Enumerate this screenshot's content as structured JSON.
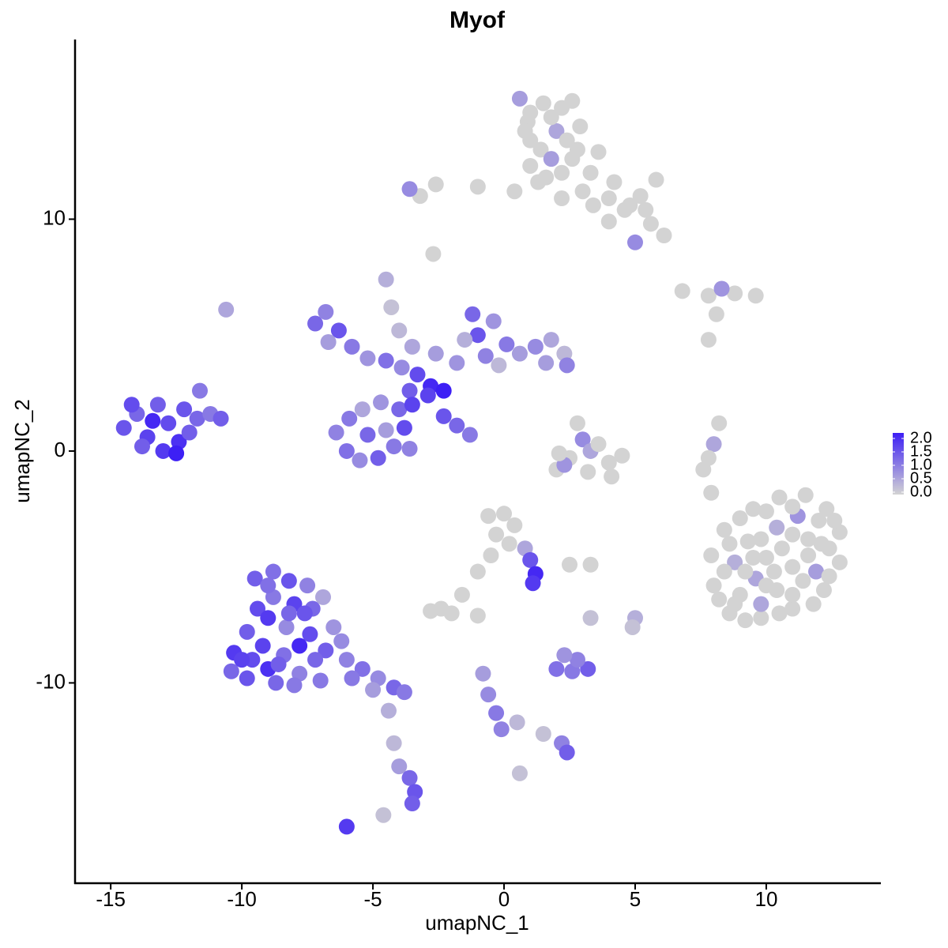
{
  "chart_data": {
    "type": "scatter",
    "title": "Myof",
    "x_label": "umapNC_1",
    "y_label": "umapNC_2",
    "xlim": [
      -16.36,
      14.37
    ],
    "ylim": [
      -18.64,
      17.75
    ],
    "xticks": [
      -15,
      -10,
      -5,
      0,
      5,
      10
    ],
    "yticks": [
      -10,
      0,
      10
    ],
    "color_low": "#d3d3d3",
    "color_high": "#3d1ff5",
    "clim": [
      0,
      2
    ],
    "cticks": [
      {
        "value": 0,
        "label": "0.0"
      },
      {
        "value": 0.5,
        "label": "0.5"
      },
      {
        "value": 1,
        "label": "1.0"
      },
      {
        "value": 1.5,
        "label": "1.5"
      },
      {
        "value": 2,
        "label": "2.0"
      }
    ],
    "x": [
      1.5,
      2.2,
      0.9,
      2.0,
      2.9,
      1.4,
      2.6,
      3.3,
      4.2,
      5.2,
      5.8,
      4.6,
      5.6,
      6.1,
      4.0,
      1.3,
      0.4,
      -1.0,
      -2.6,
      -3.2,
      2.2,
      3.4,
      0.8,
      1.0,
      5.0,
      0.6,
      2.6,
      3.6,
      -2.7,
      -3.6,
      6.8,
      7.8,
      8.8,
      9.6,
      8.3,
      8.1,
      7.8,
      -14.5,
      -14.0,
      -13.6,
      -13.2,
      -12.8,
      -12.4,
      -12.2,
      -13.8,
      -13.0,
      -12.5,
      -11.7,
      -11.2,
      -10.8,
      -11.6,
      -14.2,
      -13.4,
      -12.0,
      -10.6,
      -7.2,
      -6.8,
      -6.3,
      -6.7,
      -5.8,
      -5.2,
      -4.5,
      -3.9,
      -3.3,
      -2.8,
      -2.3,
      -2.9,
      -3.6,
      -4.5,
      -4.3,
      -4.0,
      -3.5,
      -2.6,
      -1.8,
      -1.2,
      -1.0,
      -0.4,
      0.1,
      -0.7,
      0.6,
      1.2,
      1.8,
      2.3,
      2.4,
      1.6,
      -1.5,
      -0.2,
      -6.4,
      -6.0,
      -5.5,
      -4.8,
      -4.2,
      -3.8,
      -4.0,
      -4.7,
      -5.4,
      -5.9,
      -5.2,
      -4.5,
      -3.5,
      -3.6,
      -2.3,
      -1.8,
      -1.3,
      2.8,
      3.0,
      3.3,
      2.5,
      2.0,
      3.2,
      4.0,
      4.5,
      3.6,
      2.3,
      4.1,
      2.1,
      8.2,
      8.0,
      7.8,
      7.6,
      7.9,
      9.5,
      10.5,
      11.5,
      12.3,
      12.8,
      12.8,
      12.2,
      11.0,
      9.8,
      8.6,
      8.0,
      7.9,
      8.4,
      9.3,
      10.4,
      11.6,
      11.0,
      9.6,
      10.4,
      11.9,
      9.0,
      10.0,
      11.2,
      8.8,
      12.1,
      9.0,
      10.0,
      11.0,
      12.0,
      9.8,
      11.0,
      12.4,
      8.6,
      9.5,
      10.6,
      11.6,
      8.4,
      9.2,
      10.3,
      11.4,
      12.4,
      8.8,
      9.8,
      11.0,
      11.8,
      10.5,
      10.0,
      8.2,
      12.6,
      9.2,
      -0.6,
      0.0,
      0.4,
      -0.3,
      0.2,
      0.8,
      1.0,
      1.2,
      1.1,
      -0.5,
      -1.0,
      -1.6,
      -2.4,
      -2.8,
      -2.0,
      2.5,
      3.3,
      -1.0,
      2.0,
      2.6,
      3.2,
      2.8,
      2.3,
      3.3,
      5.0,
      4.9,
      -9.5,
      -8.8,
      -8.2,
      -7.5,
      -7.3,
      -8.0,
      -8.8,
      -9.4,
      -9.8,
      -10.3,
      -10.4,
      -9.8,
      -9.0,
      -8.4,
      -7.8,
      -7.0,
      -6.8,
      -7.4,
      -8.3,
      -9.2,
      -8.7,
      -6.5,
      -6.9,
      -6.0,
      -5.4,
      -4.8,
      -4.2,
      -3.8,
      -5.0,
      -4.4,
      -4.2,
      -4.0,
      -3.6,
      -3.4,
      -3.5,
      -6.0,
      -4.6,
      -9.0,
      -8.2,
      -7.6,
      -9.6,
      -8.6,
      -7.8,
      -9.0,
      -10.0,
      -7.2,
      -8.0,
      -6.2,
      -5.8,
      1.0,
      1.8,
      2.4,
      1.0,
      1.8,
      2.8,
      1.6,
      2.2,
      3.0,
      4.0,
      4.8,
      5.4,
      -0.8,
      -0.6,
      -0.3,
      -0.1,
      0.5,
      1.5,
      2.2,
      2.4,
      0.6
    ],
    "y": [
      15.0,
      14.8,
      14.2,
      13.8,
      14.0,
      13.0,
      12.6,
      12.0,
      11.6,
      11.0,
      11.7,
      10.4,
      9.8,
      9.3,
      9.9,
      11.6,
      11.2,
      11.4,
      11.5,
      11.0,
      10.9,
      10.6,
      13.8,
      12.3,
      9.0,
      15.2,
      15.1,
      12.9,
      8.5,
      11.3,
      6.9,
      6.7,
      6.8,
      6.7,
      7.0,
      5.9,
      4.8,
      1.0,
      1.6,
      0.6,
      2.0,
      1.2,
      0.4,
      1.8,
      0.2,
      0.0,
      -0.1,
      1.4,
      1.6,
      1.4,
      2.6,
      2.0,
      1.3,
      0.8,
      6.1,
      5.5,
      6.0,
      5.2,
      4.7,
      4.5,
      4.0,
      3.9,
      3.6,
      3.3,
      2.8,
      2.6,
      2.4,
      2.6,
      7.4,
      6.2,
      5.2,
      4.5,
      4.2,
      3.8,
      5.9,
      5.0,
      5.6,
      4.6,
      4.1,
      4.2,
      4.5,
      4.8,
      4.2,
      3.7,
      3.8,
      4.8,
      3.7,
      0.8,
      0.0,
      -0.4,
      -0.3,
      0.2,
      1.0,
      1.8,
      2.1,
      1.8,
      1.4,
      0.7,
      0.9,
      2.0,
      0.1,
      1.5,
      1.1,
      0.7,
      1.2,
      0.5,
      0.0,
      -0.3,
      -0.8,
      -0.9,
      -0.5,
      -0.2,
      0.3,
      -0.6,
      -1.1,
      -0.1,
      1.2,
      0.3,
      -0.3,
      -0.8,
      -1.8,
      -2.5,
      -2.0,
      -1.9,
      -2.5,
      -3.5,
      -4.8,
      -6.0,
      -6.8,
      -7.2,
      -7.0,
      -5.8,
      -4.5,
      -3.4,
      -3.9,
      -3.3,
      -3.8,
      -5.0,
      -5.5,
      -6.0,
      -5.2,
      -6.2,
      -4.6,
      -2.8,
      -4.8,
      -4.0,
      -2.9,
      -2.6,
      -2.4,
      -3.0,
      -3.8,
      -3.6,
      -4.2,
      -4.0,
      -4.6,
      -4.2,
      -4.5,
      -5.2,
      -5.2,
      -5.2,
      -5.6,
      -5.4,
      -6.6,
      -6.6,
      -6.2,
      -6.6,
      -7.0,
      -5.8,
      -6.4,
      -3.0,
      -7.3,
      -2.8,
      -2.7,
      -3.2,
      -3.6,
      -4.0,
      -4.2,
      -4.7,
      -5.3,
      -5.7,
      -4.5,
      -5.2,
      -6.2,
      -6.8,
      -6.9,
      -7.0,
      -4.9,
      -4.9,
      -7.1,
      -9.4,
      -9.5,
      -9.4,
      -9.0,
      -8.8,
      -7.2,
      -7.2,
      -7.6,
      -5.5,
      -5.2,
      -5.6,
      -5.8,
      -6.8,
      -6.6,
      -6.3,
      -6.8,
      -7.8,
      -8.7,
      -9.5,
      -9.8,
      -9.4,
      -8.8,
      -9.6,
      -9.9,
      -8.6,
      -7.9,
      -7.6,
      -8.4,
      -10.0,
      -7.6,
      -6.3,
      -9.0,
      -9.4,
      -9.8,
      -10.2,
      -10.4,
      -10.3,
      -11.2,
      -12.6,
      -13.6,
      -14.1,
      -14.7,
      -15.2,
      -16.2,
      -15.7,
      -7.2,
      -7.0,
      -7.0,
      -9.0,
      -9.2,
      -8.4,
      -5.8,
      -9.0,
      -9.0,
      -10.1,
      -8.2,
      -9.8,
      14.6,
      14.4,
      13.4,
      13.4,
      12.6,
      13.0,
      11.8,
      12.0,
      11.2,
      10.9,
      10.6,
      10.4,
      -9.6,
      -10.5,
      -11.3,
      -12.0,
      -11.7,
      -12.2,
      -12.6,
      -13.0,
      -13.9
    ],
    "values": [
      0,
      0,
      0,
      0.5,
      0,
      0,
      0,
      0,
      0,
      0,
      0,
      0,
      0,
      0,
      0,
      0,
      0,
      0,
      0,
      0,
      0,
      0,
      0,
      0,
      0.8,
      0.6,
      0,
      0,
      0,
      0.8,
      0,
      0,
      0,
      0,
      0.7,
      0,
      0,
      1.4,
      1.2,
      1.6,
      1.3,
      1.5,
      1.8,
      1.4,
      1.3,
      1.7,
      2.0,
      1.2,
      1.0,
      1.3,
      1.0,
      1.5,
      1.9,
      1.3,
      0.5,
      1.2,
      0.9,
      1.4,
      0.6,
      1.0,
      0.7,
      1.1,
      0.8,
      1.5,
      1.9,
      2.0,
      1.6,
      1.3,
      0.4,
      0.2,
      0.3,
      0.5,
      0.6,
      0.7,
      1.2,
      1.4,
      0.7,
      1.0,
      0.9,
      0.6,
      0.8,
      0.5,
      0.3,
      0.9,
      0.6,
      0.4,
      0.3,
      0.9,
      1.1,
      0.8,
      1.3,
      1.0,
      1.5,
      1.2,
      0.7,
      0.5,
      1.0,
      1.2,
      0.6,
      1.6,
      0.9,
      1.4,
      1.2,
      1.0,
      0,
      0.8,
      0.5,
      0,
      0,
      0,
      0,
      0,
      0,
      0.7,
      0,
      0,
      0,
      0.5,
      0,
      0,
      0,
      0,
      0,
      0,
      0,
      0,
      0,
      0,
      0,
      0,
      0,
      0,
      0,
      0,
      0,
      0.4,
      0,
      0,
      0.5,
      0,
      0.6,
      0,
      0,
      0.7,
      0.4,
      0,
      0,
      0,
      0,
      0,
      0,
      0,
      0,
      0,
      0,
      0,
      0,
      0,
      0,
      0,
      0,
      0,
      0,
      0.5,
      0,
      0,
      0,
      0,
      0,
      0,
      0,
      0,
      0,
      0,
      0,
      0,
      0.5,
      1.4,
      1.9,
      1.7,
      0,
      0,
      0,
      0,
      0,
      0,
      0,
      0,
      0,
      1.1,
      1.0,
      1.3,
      0.9,
      0.7,
      0.2,
      0.4,
      0.2,
      1.3,
      1.1,
      1.4,
      0.9,
      1.2,
      1.6,
      1.0,
      1.5,
      1.3,
      1.7,
      1.2,
      1.4,
      1.8,
      1.1,
      0.9,
      1.0,
      1.3,
      1.5,
      0.8,
      1.6,
      1.2,
      0.7,
      0.5,
      0.9,
      1.1,
      0.8,
      1.2,
      1.0,
      0.6,
      0.4,
      0.3,
      0.6,
      1.2,
      1.4,
      1.3,
      1.7,
      0.2,
      1.7,
      1.2,
      1.4,
      1.5,
      1.3,
      1.9,
      1.1,
      1.6,
      1.2,
      1.0,
      0.8,
      1.0,
      0,
      0,
      0,
      0,
      0.6,
      0,
      0,
      0,
      0,
      0,
      0,
      0,
      0.6,
      0.8,
      1.0,
      0.9,
      0.3,
      0.2,
      0.9,
      1.3,
      0.2
    ]
  }
}
